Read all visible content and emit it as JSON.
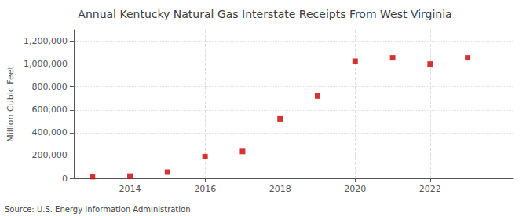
{
  "chart_data": {
    "type": "scatter",
    "title": "Annual Kentucky Natural Gas Interstate Receipts From West Virginia",
    "ylabel": "Million Cubic Feet",
    "source": "Source: U.S. Energy Information Administration",
    "x": [
      2013,
      2014,
      2015,
      2016,
      2017,
      2018,
      2019,
      2020,
      2021,
      2022,
      2023
    ],
    "values": [
      15000,
      20000,
      55000,
      190000,
      235000,
      520000,
      720000,
      1025000,
      1055000,
      1000000,
      1055000
    ],
    "color": "#cc0000",
    "marker": "square",
    "xlim": [
      2012.5,
      2024.2
    ],
    "xticks": [
      2014,
      2016,
      2018,
      2020,
      2022
    ],
    "ylim": [
      0,
      1300000
    ],
    "yticks": [
      0,
      {
        "value": 200000,
        "label": "200,000"
      },
      {
        "value": 400000,
        "label": "400,000"
      },
      {
        "value": 600000,
        "label": "600,000"
      },
      {
        "value": 800000,
        "label": "800,000"
      },
      {
        "value": 1000000,
        "label": "1,000,000"
      },
      {
        "value": 1200000,
        "label": "1,200,000"
      }
    ],
    "grid": true
  }
}
